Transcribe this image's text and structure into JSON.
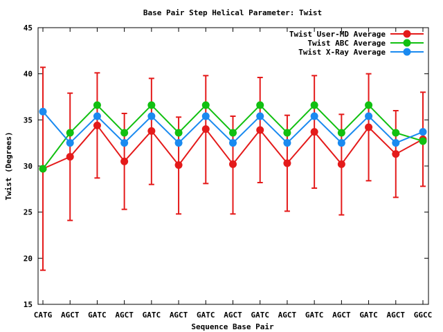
{
  "chart_data": {
    "type": "line",
    "title": "Base Pair Step Helical Parameter: Twist",
    "xlabel": "Sequence Base Pair",
    "ylabel": "Twist (Degrees)",
    "ylim": [
      15,
      45
    ],
    "yticks": [
      15,
      20,
      25,
      30,
      35,
      40,
      45
    ],
    "grid": false,
    "legend_position": "top-right",
    "categories": [
      "CATG",
      "AGCT",
      "GATC",
      "AGCT",
      "GATC",
      "AGCT",
      "GATC",
      "AGCT",
      "GATC",
      "AGCT",
      "GATC",
      "AGCT",
      "GATC",
      "AGCT",
      "GGCC"
    ],
    "series": [
      {
        "name": "Twist User-MD Average",
        "color": "#e41a1a",
        "values": [
          29.7,
          31.0,
          34.4,
          30.5,
          33.8,
          30.1,
          34.0,
          30.2,
          33.9,
          30.3,
          33.7,
          30.2,
          34.2,
          31.3,
          32.9
        ],
        "error_low": [
          18.7,
          24.1,
          28.7,
          25.3,
          28.0,
          24.8,
          28.1,
          24.8,
          28.2,
          25.1,
          27.6,
          24.7,
          28.4,
          26.6,
          27.8
        ],
        "error_high": [
          40.7,
          37.9,
          40.1,
          35.7,
          39.5,
          35.3,
          39.8,
          35.4,
          39.6,
          35.5,
          39.8,
          35.6,
          40.0,
          36.0,
          38.0
        ]
      },
      {
        "name": "Twist ABC Average",
        "color": "#11c011",
        "values": [
          29.7,
          33.6,
          36.6,
          33.6,
          36.6,
          33.6,
          36.6,
          33.6,
          36.6,
          33.6,
          36.6,
          33.6,
          36.6,
          33.6,
          32.7
        ]
      },
      {
        "name": "Twist X-Ray Average",
        "color": "#1a8af0",
        "values": [
          35.9,
          32.5,
          35.4,
          32.5,
          35.4,
          32.5,
          35.4,
          32.5,
          35.4,
          32.5,
          35.4,
          32.5,
          35.4,
          32.5,
          33.7
        ]
      }
    ]
  }
}
